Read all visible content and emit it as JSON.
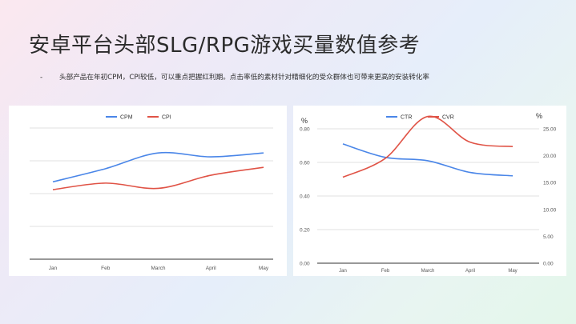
{
  "page": {
    "title": "安卓平台头部SLG/RPG游戏买量数值参考",
    "bullet": "-",
    "note": "头部产品在年初CPM，CPI较低，可以重点把握红利期。点击率低的素材针对精细化的受众群体也可带来更高的安装转化率"
  },
  "colors": {
    "blue": "#4a86e8",
    "red": "#e05346",
    "grid": "#d9d9d9",
    "axis": "#333333",
    "tick": "#555555"
  },
  "chart_data": [
    {
      "type": "line",
      "categories": [
        "Jan",
        "Feb",
        "March",
        "April",
        "May"
      ],
      "series": [
        {
          "name": "CPM",
          "color": "#4a86e8",
          "values": [
            2.95,
            3.45,
            4.05,
            3.9,
            4.05
          ]
        },
        {
          "name": "CPI",
          "color": "#e05346",
          "values": [
            2.65,
            2.9,
            2.7,
            3.2,
            3.5
          ]
        }
      ],
      "ylim": [
        0,
        5
      ],
      "yticks_labeled": false,
      "grid": true,
      "legend": "top-center"
    },
    {
      "type": "line",
      "categories": [
        "Jan",
        "Feb",
        "March",
        "April",
        "May"
      ],
      "series": [
        {
          "name": "CTR",
          "color": "#4a86e8",
          "axis": "left",
          "values": [
            0.71,
            0.63,
            0.61,
            0.54,
            0.52
          ]
        },
        {
          "name": "CVR",
          "color": "#e05346",
          "axis": "right",
          "values": [
            16.0,
            19.5,
            27.3,
            22.5,
            21.7
          ]
        }
      ],
      "ylabel_left": "%",
      "ylabel_right": "%",
      "ylim_left": [
        0,
        0.8
      ],
      "yticks_left": [
        "0.00",
        "0.20",
        "0.40",
        "0.60",
        "0.80"
      ],
      "ylim_right": [
        0,
        25
      ],
      "yticks_right": [
        "0.00",
        "5.00",
        "10.00",
        "15.00",
        "20.00",
        "25.00"
      ],
      "grid": true,
      "legend": "top-center"
    }
  ]
}
